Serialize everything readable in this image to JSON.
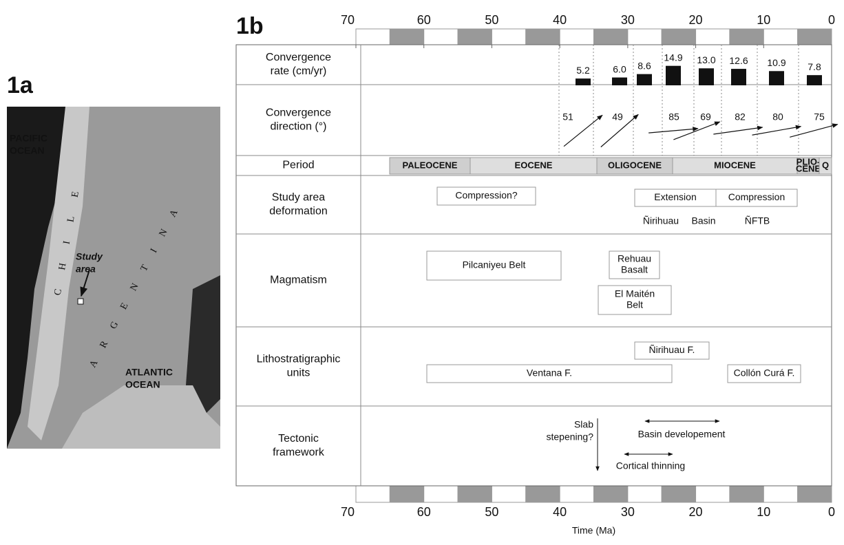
{
  "panel_a": {
    "label": "1a",
    "pacific": [
      "PACIFIC",
      "OCEAN"
    ],
    "country1": "CHILE",
    "country2": "ARGENTINA",
    "study_area": [
      "Study",
      "area"
    ],
    "atlantic": [
      "ATLANTIC",
      "OCEAN"
    ]
  },
  "panel_b": {
    "label": "1b",
    "axis": {
      "lim": [
        70,
        0
      ],
      "ticks": [
        70,
        60,
        50,
        40,
        30,
        20,
        10,
        0
      ],
      "title": "Time (Ma)"
    },
    "row_labels": [
      [
        "Convergence",
        "rate (cm/yr)"
      ],
      [
        "Convergence",
        "direction (°)"
      ],
      [
        "Period"
      ],
      [
        "Study area",
        "deformation"
      ],
      [
        "Magmatism"
      ],
      [
        "Lithostratigraphic",
        "units"
      ],
      [
        "Tectonic",
        "framework"
      ]
    ],
    "convergence_rate": [
      5.2,
      6.0,
      8.6,
      14.9,
      13.0,
      12.6,
      10.9,
      7.8
    ],
    "convergence_rate_labels": [
      "5.2",
      "6.0",
      "8.6",
      "14.9",
      "13.0",
      "12.6",
      "10.9",
      "7.8"
    ],
    "convergence_direction": [
      51,
      49,
      85,
      69,
      82,
      80,
      75
    ],
    "periods": [
      [
        "PALEOCENE"
      ],
      [
        "EOCENE"
      ],
      [
        "OLIGOCENE"
      ],
      [
        "MIOCENE"
      ],
      [
        "PLIO-",
        "CENE"
      ],
      [
        "Q"
      ]
    ],
    "deformation": {
      "boxes": [
        "Compression?",
        "Extension",
        "Compression"
      ],
      "notes": [
        "Ñirihuau",
        "Basin",
        "ÑFTB"
      ]
    },
    "magmatism": [
      [
        "Pilcaniyeu Belt"
      ],
      [
        "Rehuau",
        "Basalt"
      ],
      [
        "El Maitén",
        "Belt"
      ]
    ],
    "units": [
      "Ñirihuau F.",
      "Ventana F.",
      "Collón Curá F."
    ],
    "tectonic": {
      "slab": [
        "Slab",
        "stepening?"
      ],
      "basin": "Basin developement",
      "thinning": "Cortical thinning"
    }
  }
}
